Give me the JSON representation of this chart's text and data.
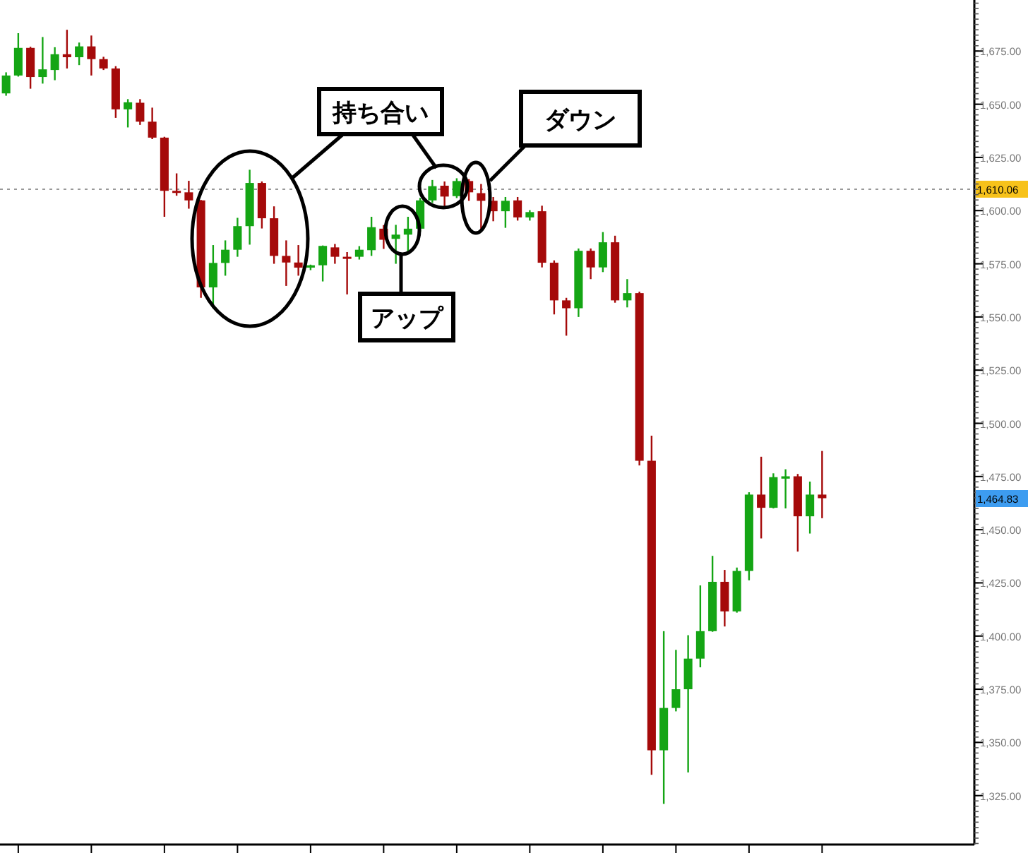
{
  "chart_data": {
    "type": "candlestick",
    "categories": [
      null,
      null,
      null,
      null,
      null,
      null,
      null,
      null,
      null,
      null,
      null,
      null,
      null,
      null,
      null,
      null,
      null,
      null,
      null,
      null,
      null,
      null,
      null,
      null,
      null,
      null,
      null,
      null,
      null,
      null,
      null,
      null,
      null,
      null,
      null,
      null,
      null,
      null,
      null,
      null,
      null,
      null,
      null,
      null,
      null,
      null,
      null,
      null,
      null,
      null,
      null,
      null,
      null,
      null,
      null,
      null,
      null,
      null,
      null,
      null,
      null,
      null,
      null,
      null,
      null,
      null,
      null,
      null,
      null,
      null,
      null,
      null,
      null,
      null,
      null,
      null,
      null,
      null,
      null,
      null
    ],
    "ohlc": [
      [
        1655.1,
        1665,
        1654,
        1663.5
      ],
      [
        1663.5,
        1683.4,
        1663,
        1676.5
      ],
      [
        1676.5,
        1677,
        1657.3,
        1662.8
      ],
      [
        1662.8,
        1681.6,
        1659.7,
        1666.4
      ],
      [
        1666.1,
        1676.8,
        1661.3,
        1673.5
      ],
      [
        1673.5,
        1685,
        1666.8,
        1672.1
      ],
      [
        1672.1,
        1679,
        1668.4,
        1677.2
      ],
      [
        1677.2,
        1682.3,
        1663.5,
        1671.2
      ],
      [
        1671.2,
        1672.3,
        1666.1,
        1666.8
      ],
      [
        1666.8,
        1667.9,
        1643.6,
        1647.6
      ],
      [
        1647.6,
        1652.4,
        1639.1,
        1650.9
      ],
      [
        1650.7,
        1652.4,
        1640.3,
        1641.8
      ],
      [
        1641.8,
        1648.4,
        1633.6,
        1634.3
      ],
      [
        1634.3,
        1634.7,
        1597.1,
        1609.3
      ],
      [
        1609.3,
        1617.5,
        1607,
        1608.6
      ],
      [
        1608.6,
        1614,
        1600.9,
        1604.8
      ],
      [
        1604.8,
        1605,
        1559,
        1563.9
      ],
      [
        1563.9,
        1583.8,
        1555,
        1575.4
      ],
      [
        1575.4,
        1586,
        1569.4,
        1581.6
      ],
      [
        1581.6,
        1596.6,
        1578.3,
        1592.7
      ],
      [
        1592.7,
        1619.2,
        1584,
        1613
      ],
      [
        1613,
        1613.7,
        1591.6,
        1596.4
      ],
      [
        1596.4,
        1602,
        1575,
        1578.7
      ],
      [
        1578.7,
        1586,
        1564.6,
        1575.6
      ],
      [
        1575.6,
        1583.8,
        1569.4,
        1573.2
      ],
      [
        1573.2,
        1574.6,
        1572,
        1574.3
      ],
      [
        1574.3,
        1583.6,
        1566.7,
        1583.4
      ],
      [
        1582.7,
        1584.3,
        1575,
        1578.3
      ],
      [
        1578.3,
        1580.5,
        1560.6,
        1578
      ],
      [
        1578.3,
        1583.3,
        1577,
        1581.6
      ],
      [
        1581.4,
        1597.1,
        1578.7,
        1592.2
      ],
      [
        1591.5,
        1593.2,
        1582,
        1586.3
      ],
      [
        1586.7,
        1593.3,
        1575,
        1588.7
      ],
      [
        1588.7,
        1597.1,
        1580,
        1591.5
      ],
      [
        1591.5,
        1606,
        1590,
        1604.8
      ],
      [
        1604.8,
        1614.4,
        1603.7,
        1611.5
      ],
      [
        1611.7,
        1613.7,
        1601.5,
        1606.6
      ],
      [
        1606.8,
        1615.2,
        1605.9,
        1613.9
      ],
      [
        1613.9,
        1614.8,
        1604.6,
        1608.6
      ],
      [
        1608.2,
        1612.5,
        1591,
        1604.6
      ],
      [
        1604.6,
        1606.4,
        1595,
        1599.7
      ],
      [
        1599.7,
        1606.4,
        1591.9,
        1604.6
      ],
      [
        1604.8,
        1606.4,
        1595.3,
        1596.8
      ],
      [
        1596.8,
        1600.2,
        1595.3,
        1599.3
      ],
      [
        1599.7,
        1602.3,
        1573.3,
        1575.5
      ],
      [
        1575.5,
        1576.6,
        1551.2,
        1557.8
      ],
      [
        1557.8,
        1559,
        1541.2,
        1554.1
      ],
      [
        1554.1,
        1582.2,
        1550,
        1581.1
      ],
      [
        1581.1,
        1582.2,
        1567.8,
        1573.3
      ],
      [
        1573.3,
        1589.9,
        1571.1,
        1585.1
      ],
      [
        1585.1,
        1588.2,
        1556.7,
        1557.8
      ],
      [
        1557.8,
        1567.8,
        1554.5,
        1561.2
      ],
      [
        1561.2,
        1561.9,
        1480.2,
        1482.4
      ],
      [
        1482.4,
        1494.2,
        1334.8,
        1346.3
      ],
      [
        1346.3,
        1402.3,
        1321.1,
        1366.2
      ],
      [
        1366.2,
        1393.5,
        1364.6,
        1375
      ],
      [
        1375,
        1400.4,
        1335.9,
        1389.4
      ],
      [
        1389.4,
        1423.8,
        1385.3,
        1402.3
      ],
      [
        1402.3,
        1437.7,
        1402,
        1425.5
      ],
      [
        1425.5,
        1431.1,
        1404.5,
        1411.6
      ],
      [
        1411.6,
        1432.2,
        1411,
        1430.6
      ],
      [
        1430.6,
        1467.6,
        1426.2,
        1466.5
      ],
      [
        1466.5,
        1484.3,
        1445.9,
        1460.3
      ],
      [
        1460.3,
        1476.5,
        1460,
        1474.7
      ],
      [
        1474,
        1478.4,
        1460,
        1475.1
      ],
      [
        1475.1,
        1476.2,
        1439.7,
        1456.3
      ],
      [
        1456.3,
        1472.6,
        1448.2,
        1466.5
      ],
      [
        1466.5,
        1487,
        1455.4,
        1464.8
      ],
      null,
      null,
      null,
      null,
      null,
      null,
      null,
      null,
      null,
      null,
      null,
      null
    ],
    "colors": [
      "#14a514",
      "#14a514",
      "#a50a0a",
      "#14a514",
      "#14a514",
      "#a50a0a",
      "#14a514",
      "#a50a0a",
      "#a50a0a",
      "#a50a0a",
      "#14a514",
      "#a50a0a",
      "#a50a0a",
      "#a50a0a",
      "#a50a0a",
      "#a50a0a",
      "#a50a0a",
      "#14a514",
      "#14a514",
      "#14a514",
      "#14a514",
      "#a50a0a",
      "#a50a0a",
      "#a50a0a",
      "#a50a0a",
      "#14a514",
      "#14a514",
      "#a50a0a",
      "#a50a0a",
      "#14a514",
      "#14a514",
      "#a50a0a",
      "#14a514",
      "#14a514",
      "#14a514",
      "#14a514",
      "#a50a0a",
      "#14a514",
      "#a50a0a",
      "#a50a0a",
      "#a50a0a",
      "#14a514",
      "#a50a0a",
      "#14a514",
      "#a50a0a",
      "#a50a0a",
      "#a50a0a",
      "#14a514",
      "#a50a0a",
      "#14a514",
      "#a50a0a",
      "#14a514",
      "#a50a0a",
      "#a50a0a",
      "#14a514",
      "#14a514",
      "#14a514",
      "#14a514",
      "#14a514",
      "#a50a0a",
      "#14a514",
      "#14a514",
      "#a50a0a",
      "#14a514",
      "#14a514",
      "#a50a0a",
      "#14a514",
      "#a50a0a",
      null,
      null,
      null,
      null,
      null,
      null,
      null,
      null,
      null,
      null,
      null,
      null
    ],
    "ylim": [
      1302,
      1699
    ],
    "yticks": [
      {
        "value": 1325,
        "label": "1,325.00"
      },
      {
        "value": 1350,
        "label": "1,350.00"
      },
      {
        "value": 1375,
        "label": "1,375.00"
      },
      {
        "value": 1400,
        "label": "1,400.00"
      },
      {
        "value": 1425,
        "label": "1,425.00"
      },
      {
        "value": 1450,
        "label": "1,450.00"
      },
      {
        "value": 1475,
        "label": "1,475.00"
      },
      {
        "value": 1500,
        "label": "1,500.00"
      },
      {
        "value": 1525,
        "label": "1,525.00"
      },
      {
        "value": 1550,
        "label": "1,550.00"
      },
      {
        "value": 1575,
        "label": "1,575.00"
      },
      {
        "value": 1600,
        "label": "1,600.00"
      },
      {
        "value": 1625,
        "label": "1,625.00"
      },
      {
        "value": 1650,
        "label": "1,650.00"
      },
      {
        "value": 1675,
        "label": "1,675.00"
      }
    ],
    "tick_labels": "y",
    "ref_lines": [
      {
        "axis": "y",
        "value": 1610.06,
        "label": "1,610.06",
        "color": "#999999",
        "line_style": "dotted"
      }
    ],
    "annotations": [
      "持ち合い",
      "アップ",
      "ダウン",
      "1,464.83"
    ]
  }
}
